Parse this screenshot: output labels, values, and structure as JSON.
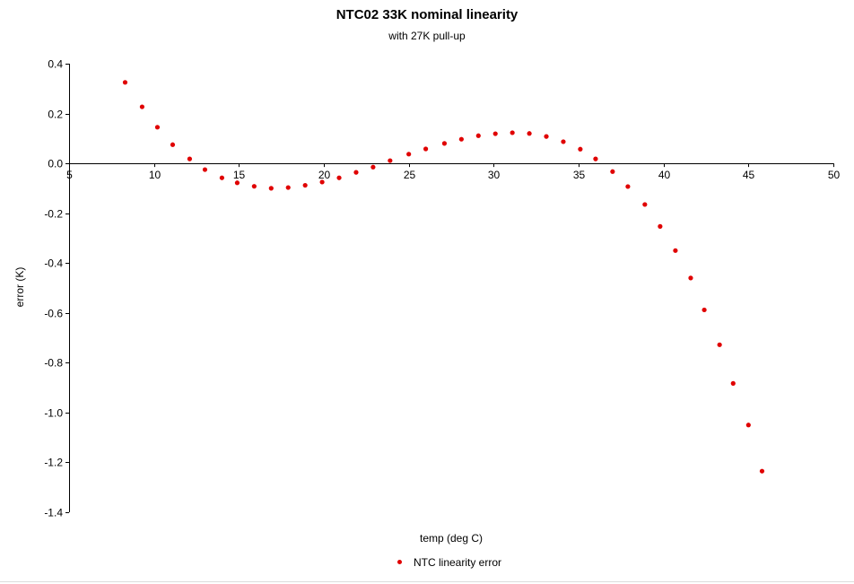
{
  "chart_data": {
    "type": "scatter",
    "title": "NTC02 33K nominal linearity",
    "subtitle": "with 27K pull-up",
    "xlabel": "temp (deg C)",
    "ylabel": "error (K)",
    "xlim": [
      5,
      50
    ],
    "ylim": [
      -1.4,
      0.4
    ],
    "xticks": [
      5,
      10,
      15,
      20,
      25,
      30,
      35,
      40,
      45,
      50
    ],
    "yticks": [
      0.4,
      0.2,
      0.0,
      -0.2,
      -0.4,
      -0.6,
      -0.8,
      -1.0,
      -1.2,
      -1.4
    ],
    "xtick_labels": [
      "5",
      "10",
      "15",
      "20",
      "25",
      "30",
      "35",
      "40",
      "45",
      "50"
    ],
    "ytick_labels": [
      "0.4",
      "0.2",
      "0.0",
      "-0.2",
      "-0.4",
      "-0.6",
      "-0.8",
      "-1.0",
      "-1.2",
      "-1.4"
    ],
    "grid": false,
    "legend_position": "bottom-center",
    "series": [
      {
        "name": "NTC linearity error",
        "color": "#e00000",
        "x": [
          8.3,
          9.3,
          10.2,
          11.1,
          12.1,
          13.0,
          14.0,
          14.9,
          15.9,
          16.9,
          17.9,
          18.9,
          19.9,
          20.9,
          21.9,
          22.9,
          23.9,
          25.0,
          26.0,
          27.1,
          28.1,
          29.1,
          30.1,
          31.1,
          32.1,
          33.1,
          34.1,
          35.1,
          36.0,
          37.0,
          37.9,
          38.9,
          39.8,
          40.7,
          41.6,
          42.4,
          43.3,
          44.1,
          45.0,
          45.8
        ],
        "y": [
          0.325,
          0.227,
          0.145,
          0.075,
          0.018,
          -0.025,
          -0.058,
          -0.078,
          -0.092,
          -0.1,
          -0.097,
          -0.088,
          -0.075,
          -0.058,
          -0.036,
          -0.015,
          0.011,
          0.037,
          0.058,
          0.08,
          0.097,
          0.111,
          0.119,
          0.123,
          0.12,
          0.108,
          0.087,
          0.057,
          0.018,
          -0.033,
          -0.093,
          -0.165,
          -0.253,
          -0.35,
          -0.46,
          -0.588,
          -0.728,
          -0.883,
          -1.05,
          -1.235
        ]
      }
    ]
  }
}
